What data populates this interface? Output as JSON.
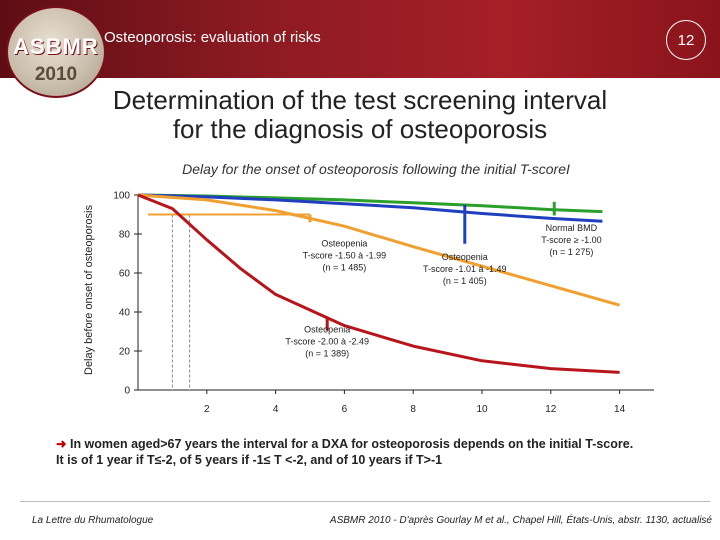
{
  "header": {
    "logo_text": "ASBMR",
    "logo_year": "2010",
    "title": "Osteoporosis: evaluation of risks",
    "page_number": "12"
  },
  "main_title_line1": "Determination of the test screening interval",
  "main_title_line2": "for the diagnosis of osteoporosis",
  "subtitle": "Delay for the onset of osteoporosis following the initial T-scoreI",
  "note": {
    "line1": "In women aged>67 years the interval for a DXA for osteoporosis depends on the initial T-score.",
    "line2": "It is of 1 year if T≤-2, of 5 years if -1≤ T <-2, and of 10 years if T>-1"
  },
  "footer": {
    "left": "La Lettre du Rhumatologue",
    "right": "ASBMR 2010 - D'après Gourlay M et al., Chapel Hill, États-Unis, abstr. 1130, actualisé"
  },
  "colors": {
    "header_bg": "#8c1a22",
    "normal": "#2aa02a",
    "osteopenia_mild": "#1f3fbf",
    "osteopenia_moderate": "#f0a030",
    "osteopenia_advanced": "#b8141b",
    "reference_line": "#f0a030"
  },
  "chart_data": {
    "type": "line",
    "title": "Delay for the onset of osteoporosis following the initial T-scoreI",
    "xlabel": "",
    "ylabel": "Delay before onset of osteoporosis",
    "xlim": [
      0,
      15
    ],
    "ylim": [
      0,
      100
    ],
    "xticks": [
      2,
      4,
      6,
      8,
      10,
      12,
      14
    ],
    "yticks": [
      0,
      20,
      40,
      60,
      80,
      100
    ],
    "reference": {
      "y": 90,
      "x_end": 5.0
    },
    "vertical_guides": [
      1.0,
      1.5
    ],
    "series": [
      {
        "name": "Normal BMD T-score ≥ -1.00 (n = 1 275)",
        "color": "#2aa02a",
        "x": [
          0,
          2,
          4,
          6,
          8,
          10,
          12,
          13.5
        ],
        "y": [
          100,
          99.5,
          98.5,
          97.5,
          96,
          94.5,
          92.5,
          91.5
        ],
        "marker_x": 12.1,
        "marker_top_y": 96.5,
        "marker_bottom_y": 89.5
      },
      {
        "name": "Osteopenia T-score -1.01 à -1.49 (n = 1 405)",
        "color": "#1f3fbf",
        "x": [
          0,
          2,
          4,
          6,
          8,
          10,
          12,
          13.5
        ],
        "y": [
          100,
          99,
          97.5,
          95.5,
          93.5,
          90.5,
          88,
          86.5
        ],
        "marker_x": 9.5,
        "marker_top_y": 95,
        "marker_bottom_y": 75
      },
      {
        "name": "Osteopenia T-score -1.50 à -1.99 (n = 1 485)",
        "color": "#f0a030",
        "x": [
          0,
          2,
          4,
          6,
          8,
          10,
          12,
          14
        ],
        "y": [
          100,
          97.5,
          92,
          84,
          73.5,
          63.5,
          53.5,
          43.5
        ],
        "marker_x": 5.0,
        "marker_top_y": 90,
        "marker_bottom_y": 86
      },
      {
        "name": "Osteopenia T-score -2.00 à -2.49 (n = 1 389)",
        "color": "#b8141b",
        "x": [
          0,
          1,
          2,
          3,
          4,
          6,
          8,
          10,
          12,
          14
        ],
        "y": [
          100,
          93,
          77,
          62,
          49,
          33,
          22.5,
          15,
          11,
          9
        ],
        "marker_x": 5.5,
        "marker_top_y": 37.5,
        "marker_bottom_y": 30.5
      }
    ],
    "annotations": [
      {
        "lines": [
          "Normal BMD",
          "T-score ≥ -1.00",
          "(n = 1 275)"
        ],
        "x": 12.6,
        "y": 77
      },
      {
        "lines": [
          "Osteopenia",
          "T-score -1.01 à -1.49",
          "(n = 1 405)"
        ],
        "x": 9.5,
        "y": 62
      },
      {
        "lines": [
          "Osteopenia",
          "T-score -1.50 à -1.99",
          "(n = 1 485)"
        ],
        "x": 6.0,
        "y": 69
      },
      {
        "lines": [
          "Osteopenia",
          "T-score -2.00 à -2.49",
          "(n = 1 389)"
        ],
        "x": 5.5,
        "y": 25
      }
    ]
  }
}
